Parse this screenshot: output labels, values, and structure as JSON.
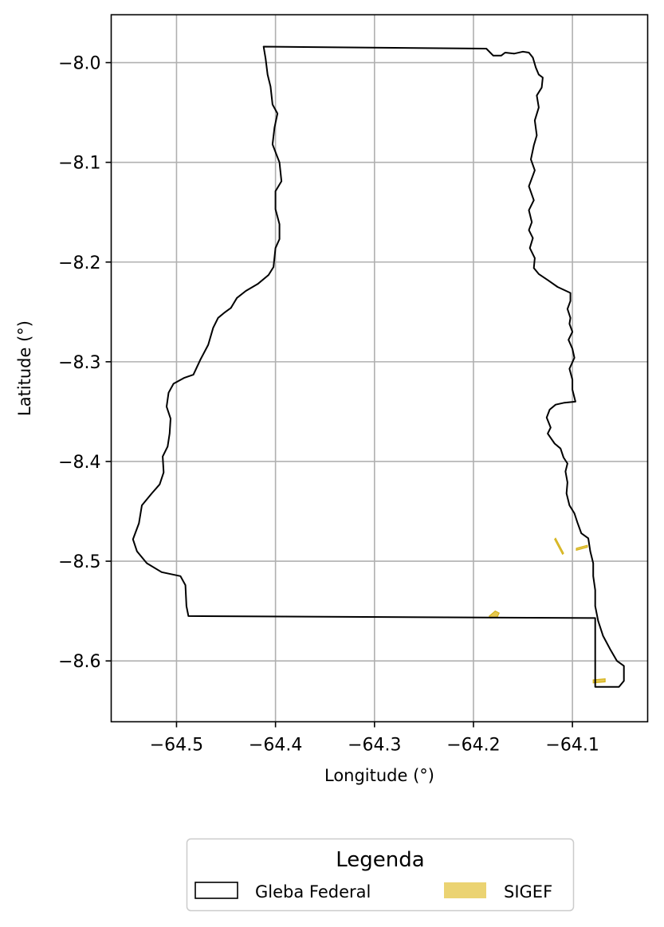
{
  "chart_data": {
    "type": "map",
    "xlabel": "Longitude (°)",
    "ylabel": "Latitude (°)",
    "xlim": [
      -64.566,
      -64.024
    ],
    "ylim": [
      -8.661,
      -7.952
    ],
    "grid": true,
    "x_ticks": [
      -64.5,
      -64.4,
      -64.3,
      -64.2,
      -64.1
    ],
    "x_tick_labels": [
      "−64.5",
      "−64.4",
      "−64.3",
      "−64.2",
      "−64.1"
    ],
    "y_ticks": [
      -8.0,
      -8.1,
      -8.2,
      -8.3,
      -8.4,
      -8.5,
      -8.6
    ],
    "y_tick_labels": [
      "−8.0",
      "−8.1",
      "−8.2",
      "−8.3",
      "−8.4",
      "−8.5",
      "−8.6"
    ],
    "legend": {
      "title": "Legenda",
      "placement": "bottom-center",
      "items": [
        {
          "label": "Gleba Federal",
          "style": "outline",
          "color": "#000000"
        },
        {
          "label": "SIGEF",
          "style": "fill",
          "color": "#e6c84f"
        }
      ]
    },
    "series": [
      {
        "name": "Gleba Federal",
        "kind": "polygon",
        "color": "#000000",
        "coordinates": [
          [
            -64.412,
            -7.984
          ],
          [
            -64.187,
            -7.986
          ],
          [
            -64.18,
            -7.993
          ],
          [
            -64.172,
            -7.993
          ],
          [
            -64.168,
            -7.99
          ],
          [
            -64.159,
            -7.991
          ],
          [
            -64.15,
            -7.989
          ],
          [
            -64.144,
            -7.99
          ],
          [
            -64.14,
            -7.995
          ],
          [
            -64.137,
            -8.005
          ],
          [
            -64.134,
            -8.012
          ],
          [
            -64.13,
            -8.015
          ],
          [
            -64.131,
            -8.025
          ],
          [
            -64.136,
            -8.033
          ],
          [
            -64.134,
            -8.045
          ],
          [
            -64.138,
            -8.058
          ],
          [
            -64.136,
            -8.073
          ],
          [
            -64.139,
            -8.083
          ],
          [
            -64.142,
            -8.097
          ],
          [
            -64.138,
            -8.108
          ],
          [
            -64.144,
            -8.124
          ],
          [
            -64.139,
            -8.138
          ],
          [
            -64.144,
            -8.148
          ],
          [
            -64.141,
            -8.16
          ],
          [
            -64.144,
            -8.168
          ],
          [
            -64.14,
            -8.176
          ],
          [
            -64.143,
            -8.186
          ],
          [
            -64.138,
            -8.196
          ],
          [
            -64.139,
            -8.206
          ],
          [
            -64.134,
            -8.212
          ],
          [
            -64.125,
            -8.218
          ],
          [
            -64.115,
            -8.225
          ],
          [
            -64.102,
            -8.231
          ],
          [
            -64.102,
            -8.239
          ],
          [
            -64.105,
            -8.247
          ],
          [
            -64.102,
            -8.256
          ],
          [
            -64.103,
            -8.262
          ],
          [
            -64.1,
            -8.27
          ],
          [
            -64.104,
            -8.278
          ],
          [
            -64.1,
            -8.287
          ],
          [
            -64.098,
            -8.296
          ],
          [
            -64.103,
            -8.307
          ],
          [
            -64.1,
            -8.318
          ],
          [
            -64.1,
            -8.328
          ],
          [
            -64.097,
            -8.34
          ],
          [
            -64.108,
            -8.341
          ],
          [
            -64.117,
            -8.343
          ],
          [
            -64.123,
            -8.348
          ],
          [
            -64.126,
            -8.356
          ],
          [
            -64.122,
            -8.366
          ],
          [
            -64.125,
            -8.372
          ],
          [
            -64.118,
            -8.382
          ],
          [
            -64.112,
            -8.387
          ],
          [
            -64.109,
            -8.396
          ],
          [
            -64.105,
            -8.402
          ],
          [
            -64.107,
            -8.41
          ],
          [
            -64.105,
            -8.421
          ],
          [
            -64.106,
            -8.432
          ],
          [
            -64.103,
            -8.444
          ],
          [
            -64.098,
            -8.452
          ],
          [
            -64.095,
            -8.461
          ],
          [
            -64.091,
            -8.472
          ],
          [
            -64.084,
            -8.477
          ],
          [
            -64.082,
            -8.49
          ],
          [
            -64.079,
            -8.502
          ],
          [
            -64.079,
            -8.515
          ],
          [
            -64.077,
            -8.529
          ],
          [
            -64.077,
            -8.545
          ],
          [
            -64.074,
            -8.56
          ],
          [
            -64.069,
            -8.575
          ],
          [
            -64.062,
            -8.588
          ],
          [
            -64.055,
            -8.6
          ],
          [
            -64.048,
            -8.605
          ],
          [
            -64.048,
            -8.62
          ],
          [
            -64.053,
            -8.626
          ],
          [
            -64.077,
            -8.626
          ],
          [
            -64.077,
            -8.557
          ],
          [
            -64.488,
            -8.555
          ],
          [
            -64.49,
            -8.545
          ],
          [
            -64.491,
            -8.524
          ],
          [
            -64.496,
            -8.515
          ],
          [
            -64.515,
            -8.511
          ],
          [
            -64.53,
            -8.502
          ],
          [
            -64.54,
            -8.49
          ],
          [
            -64.544,
            -8.478
          ],
          [
            -64.538,
            -8.462
          ],
          [
            -64.535,
            -8.444
          ],
          [
            -64.525,
            -8.432
          ],
          [
            -64.517,
            -8.423
          ],
          [
            -64.513,
            -8.411
          ],
          [
            -64.514,
            -8.395
          ],
          [
            -64.509,
            -8.385
          ],
          [
            -64.507,
            -8.372
          ],
          [
            -64.506,
            -8.357
          ],
          [
            -64.51,
            -8.345
          ],
          [
            -64.508,
            -8.331
          ],
          [
            -64.503,
            -8.322
          ],
          [
            -64.492,
            -8.316
          ],
          [
            -64.483,
            -8.313
          ],
          [
            -64.476,
            -8.298
          ],
          [
            -64.468,
            -8.283
          ],
          [
            -64.463,
            -8.266
          ],
          [
            -64.458,
            -8.256
          ],
          [
            -64.452,
            -8.251
          ],
          [
            -64.445,
            -8.246
          ],
          [
            -64.439,
            -8.236
          ],
          [
            -64.43,
            -8.229
          ],
          [
            -64.418,
            -8.222
          ],
          [
            -64.407,
            -8.213
          ],
          [
            -64.402,
            -8.205
          ],
          [
            -64.4,
            -8.186
          ],
          [
            -64.396,
            -8.177
          ],
          [
            -64.396,
            -8.162
          ],
          [
            -64.4,
            -8.147
          ],
          [
            -64.4,
            -8.129
          ],
          [
            -64.394,
            -8.119
          ],
          [
            -64.396,
            -8.1
          ],
          [
            -64.403,
            -8.082
          ],
          [
            -64.401,
            -8.065
          ],
          [
            -64.398,
            -8.051
          ],
          [
            -64.403,
            -8.042
          ],
          [
            -64.405,
            -8.024
          ],
          [
            -64.408,
            -8.012
          ],
          [
            -64.41,
            -7.996
          ],
          [
            -64.412,
            -7.984
          ]
        ]
      },
      {
        "name": "SIGEF",
        "kind": "polygons",
        "color": "#e6c84f",
        "polygons": [
          [
            [
              -64.184,
              -8.555
            ],
            [
              -64.178,
              -8.55
            ],
            [
              -64.174,
              -8.552
            ],
            [
              -64.176,
              -8.556
            ],
            [
              -64.183,
              -8.557
            ]
          ],
          [
            [
              -64.079,
              -8.619
            ],
            [
              -64.067,
              -8.618
            ],
            [
              -64.067,
              -8.621
            ],
            [
              -64.079,
              -8.622
            ]
          ],
          [
            [
              -64.118,
              -8.478
            ],
            [
              -64.117,
              -8.477
            ],
            [
              -64.109,
              -8.492
            ],
            [
              -64.11,
              -8.493
            ]
          ],
          [
            [
              -64.096,
              -8.487
            ],
            [
              -64.085,
              -8.484
            ],
            [
              -64.085,
              -8.486
            ],
            [
              -64.096,
              -8.489
            ]
          ]
        ]
      }
    ]
  }
}
